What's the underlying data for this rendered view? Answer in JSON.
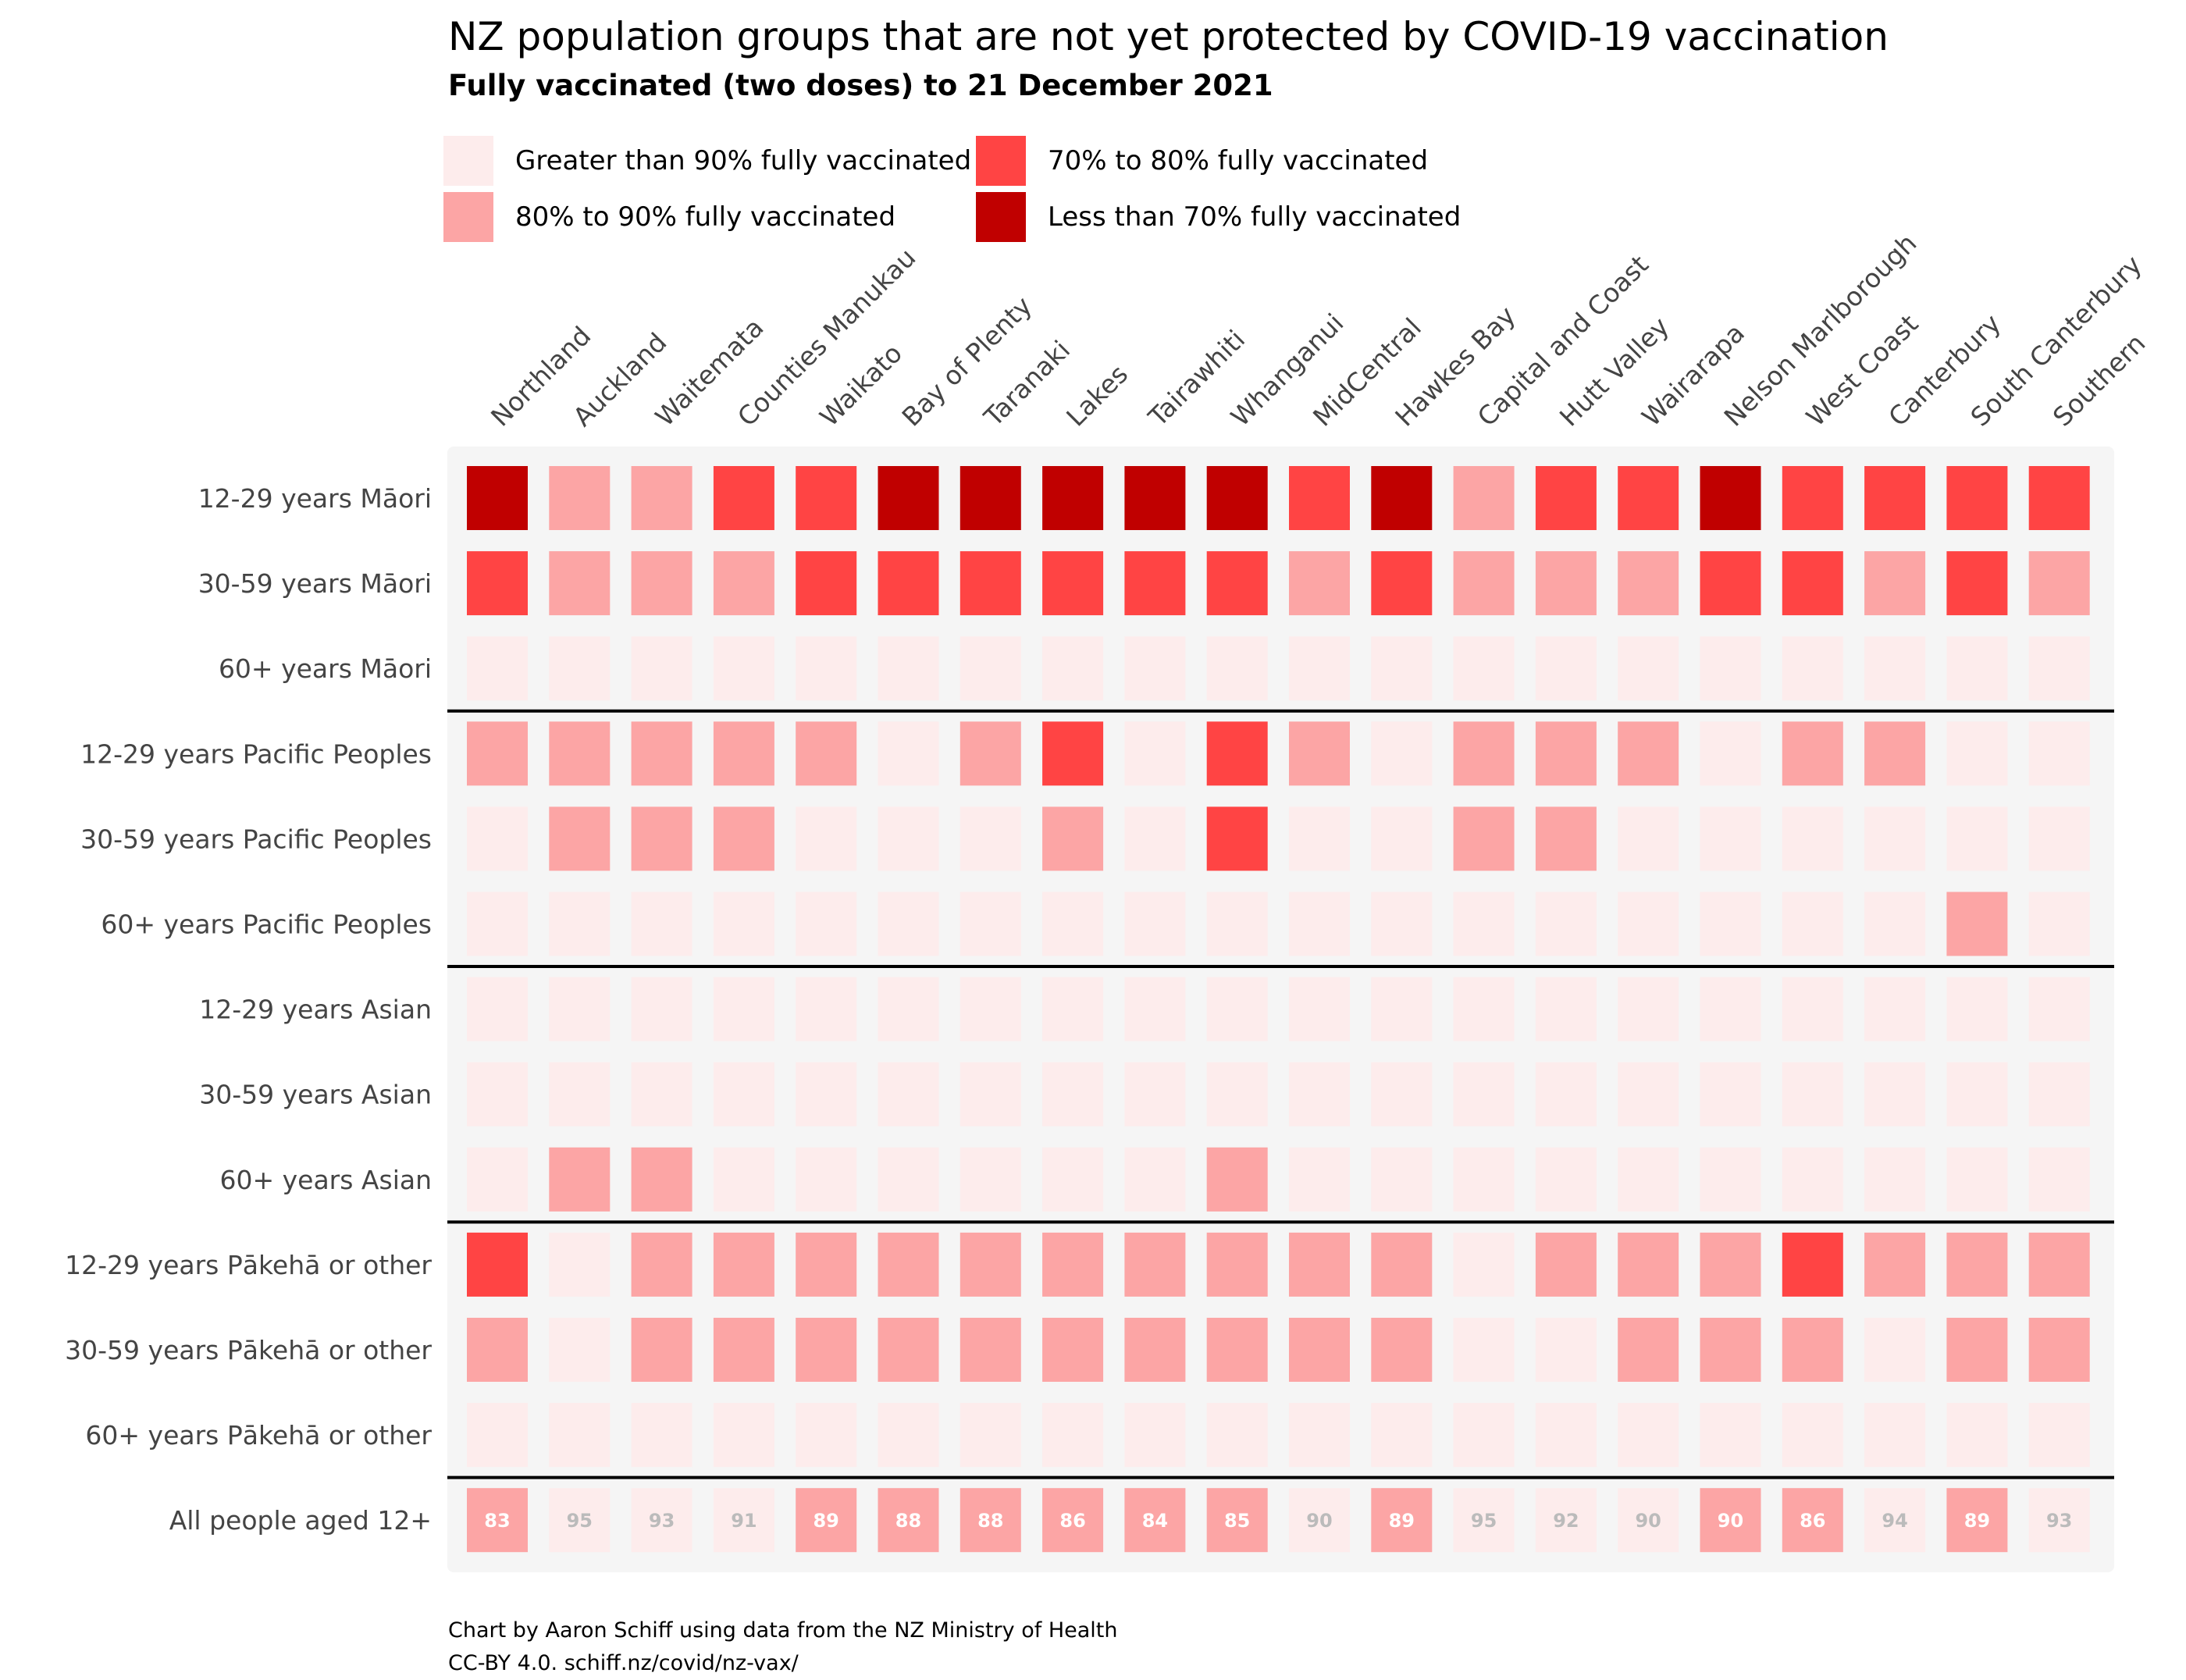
{
  "title": "NZ population groups that are not yet protected by COVID-19 vaccination",
  "subtitle": "Fully vaccinated (two doses) to 21 December 2021",
  "legend": [
    {
      "label": "Greater than 90% fully vaccinated",
      "color": "#fdecec"
    },
    {
      "label": "80% to 90% fully vaccinated",
      "color": "#fca5a5"
    },
    {
      "label": "70% to 80% fully vaccinated",
      "color": "#ff4444"
    },
    {
      "label": "Less than 70% fully vaccinated",
      "color": "#c00000"
    }
  ],
  "caption": {
    "line1": "Chart by Aaron Schiff using data from the NZ Ministry of Health",
    "line2": "CC-BY 4.0. schiff.nz/covid/nz-vax/"
  },
  "chart_data": {
    "type": "heatmap",
    "columns": [
      "Northland",
      "Auckland",
      "Waitemata",
      "Counties Manukau",
      "Waikato",
      "Bay of Plenty",
      "Taranaki",
      "Lakes",
      "Tairawhiti",
      "Whanganui",
      "MidCentral",
      "Hawkes Bay",
      "Capital and Coast",
      "Hutt Valley",
      "Wairarapa",
      "Nelson Marlborough",
      "West Coast",
      "Canterbury",
      "South Canterbury",
      "Southern"
    ],
    "rows": [
      "12-29 years Māori",
      "30-59 years Māori",
      "60+ years Māori",
      "12-29 years Pacific Peoples",
      "30-59 years Pacific Peoples",
      "60+ years Pacific Peoples",
      "12-29 years Asian",
      "30-59 years Asian",
      "60+ years Asian",
      "12-29 years Pākehā or other",
      "30-59 years Pākehā or other",
      "60+ years Pākehā or other",
      "All people aged 12+"
    ],
    "group_separators_after_row": [
      2,
      5,
      8,
      11
    ],
    "categories": [
      ">90",
      "80-90",
      "70-80",
      "<70"
    ],
    "colors": {
      ">90": "#fdecec",
      "80-90": "#fca5a5",
      "70-80": "#ff4444",
      "<70": "#c00000"
    },
    "cells": [
      [
        "<70",
        "80-90",
        "80-90",
        "70-80",
        "70-80",
        "<70",
        "<70",
        "<70",
        "<70",
        "<70",
        "70-80",
        "<70",
        "80-90",
        "70-80",
        "70-80",
        "<70",
        "70-80",
        "70-80",
        "70-80",
        "70-80"
      ],
      [
        "70-80",
        "80-90",
        "80-90",
        "80-90",
        "70-80",
        "70-80",
        "70-80",
        "70-80",
        "70-80",
        "70-80",
        "80-90",
        "70-80",
        "80-90",
        "80-90",
        "80-90",
        "70-80",
        "70-80",
        "80-90",
        "70-80",
        "80-90"
      ],
      [
        ">90",
        ">90",
        ">90",
        ">90",
        ">90",
        ">90",
        ">90",
        ">90",
        ">90",
        ">90",
        ">90",
        ">90",
        ">90",
        ">90",
        ">90",
        ">90",
        ">90",
        ">90",
        ">90",
        ">90"
      ],
      [
        "80-90",
        "80-90",
        "80-90",
        "80-90",
        "80-90",
        ">90",
        "80-90",
        "70-80",
        ">90",
        "70-80",
        "80-90",
        ">90",
        "80-90",
        "80-90",
        "80-90",
        ">90",
        "80-90",
        "80-90",
        ">90",
        ">90"
      ],
      [
        ">90",
        "80-90",
        "80-90",
        "80-90",
        ">90",
        ">90",
        ">90",
        "80-90",
        ">90",
        "70-80",
        ">90",
        ">90",
        "80-90",
        "80-90",
        ">90",
        ">90",
        ">90",
        ">90",
        ">90",
        ">90"
      ],
      [
        ">90",
        ">90",
        ">90",
        ">90",
        ">90",
        ">90",
        ">90",
        ">90",
        ">90",
        ">90",
        ">90",
        ">90",
        ">90",
        ">90",
        ">90",
        ">90",
        ">90",
        ">90",
        "80-90",
        ">90"
      ],
      [
        ">90",
        ">90",
        ">90",
        ">90",
        ">90",
        ">90",
        ">90",
        ">90",
        ">90",
        ">90",
        ">90",
        ">90",
        ">90",
        ">90",
        ">90",
        ">90",
        ">90",
        ">90",
        ">90",
        ">90"
      ],
      [
        ">90",
        ">90",
        ">90",
        ">90",
        ">90",
        ">90",
        ">90",
        ">90",
        ">90",
        ">90",
        ">90",
        ">90",
        ">90",
        ">90",
        ">90",
        ">90",
        ">90",
        ">90",
        ">90",
        ">90"
      ],
      [
        ">90",
        "80-90",
        "80-90",
        ">90",
        ">90",
        ">90",
        ">90",
        ">90",
        ">90",
        "80-90",
        ">90",
        ">90",
        ">90",
        ">90",
        ">90",
        ">90",
        ">90",
        ">90",
        ">90",
        ">90"
      ],
      [
        "70-80",
        ">90",
        "80-90",
        "80-90",
        "80-90",
        "80-90",
        "80-90",
        "80-90",
        "80-90",
        "80-90",
        "80-90",
        "80-90",
        ">90",
        "80-90",
        "80-90",
        "80-90",
        "70-80",
        "80-90",
        "80-90",
        "80-90"
      ],
      [
        "80-90",
        ">90",
        "80-90",
        "80-90",
        "80-90",
        "80-90",
        "80-90",
        "80-90",
        "80-90",
        "80-90",
        "80-90",
        "80-90",
        ">90",
        ">90",
        "80-90",
        "80-90",
        "80-90",
        ">90",
        "80-90",
        "80-90"
      ],
      [
        ">90",
        ">90",
        ">90",
        ">90",
        ">90",
        ">90",
        ">90",
        ">90",
        ">90",
        ">90",
        ">90",
        ">90",
        ">90",
        ">90",
        ">90",
        ">90",
        ">90",
        ">90",
        ">90",
        ">90"
      ],
      [
        "80-90",
        ">90",
        ">90",
        ">90",
        "80-90",
        "80-90",
        "80-90",
        "80-90",
        "80-90",
        "80-90",
        ">90",
        "80-90",
        ">90",
        ">90",
        ">90",
        "80-90",
        "80-90",
        ">90",
        "80-90",
        ">90"
      ]
    ],
    "all_people_values": [
      83,
      95,
      93,
      91,
      89,
      88,
      88,
      86,
      84,
      85,
      90,
      89,
      95,
      92,
      90,
      90,
      86,
      94,
      89,
      93
    ],
    "value_label_colors": {
      "80-90": "#ffffff",
      ">90": "#bbbbbb"
    },
    "panel_color": "#f5f5f5",
    "grid": false
  }
}
